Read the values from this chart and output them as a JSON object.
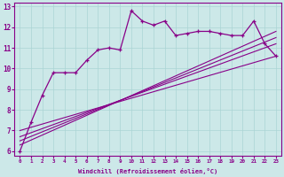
{
  "xlabel": "Windchill (Refroidissement éolien,°C)",
  "ylabel": "",
  "bg_color": "#cce8e8",
  "line_color": "#880088",
  "xlim": [
    -0.5,
    23.5
  ],
  "ylim": [
    5.8,
    13.2
  ],
  "xticks": [
    0,
    1,
    2,
    3,
    4,
    5,
    6,
    7,
    8,
    9,
    10,
    11,
    12,
    13,
    14,
    15,
    16,
    17,
    18,
    19,
    20,
    21,
    22,
    23
  ],
  "yticks": [
    6,
    7,
    8,
    9,
    10,
    11,
    12,
    13
  ],
  "main_x": [
    0,
    1,
    2,
    3,
    4,
    5,
    6,
    7,
    8,
    9,
    10,
    11,
    12,
    13,
    14,
    15,
    16,
    17,
    18,
    19,
    20,
    21,
    22,
    23
  ],
  "main_y": [
    6.0,
    7.4,
    8.7,
    9.8,
    9.8,
    9.8,
    10.4,
    10.9,
    11.0,
    10.9,
    12.8,
    12.3,
    12.1,
    12.3,
    11.6,
    11.7,
    11.8,
    11.8,
    11.7,
    11.6,
    11.6,
    12.3,
    11.2,
    10.6
  ],
  "trend1_x": [
    0,
    23
  ],
  "trend1_y": [
    6.3,
    11.8
  ],
  "trend2_x": [
    0,
    23
  ],
  "trend2_y": [
    6.5,
    11.5
  ],
  "trend3_x": [
    0,
    23
  ],
  "trend3_y": [
    6.7,
    11.2
  ],
  "trend4_x": [
    0,
    23
  ],
  "trend4_y": [
    7.0,
    10.6
  ]
}
